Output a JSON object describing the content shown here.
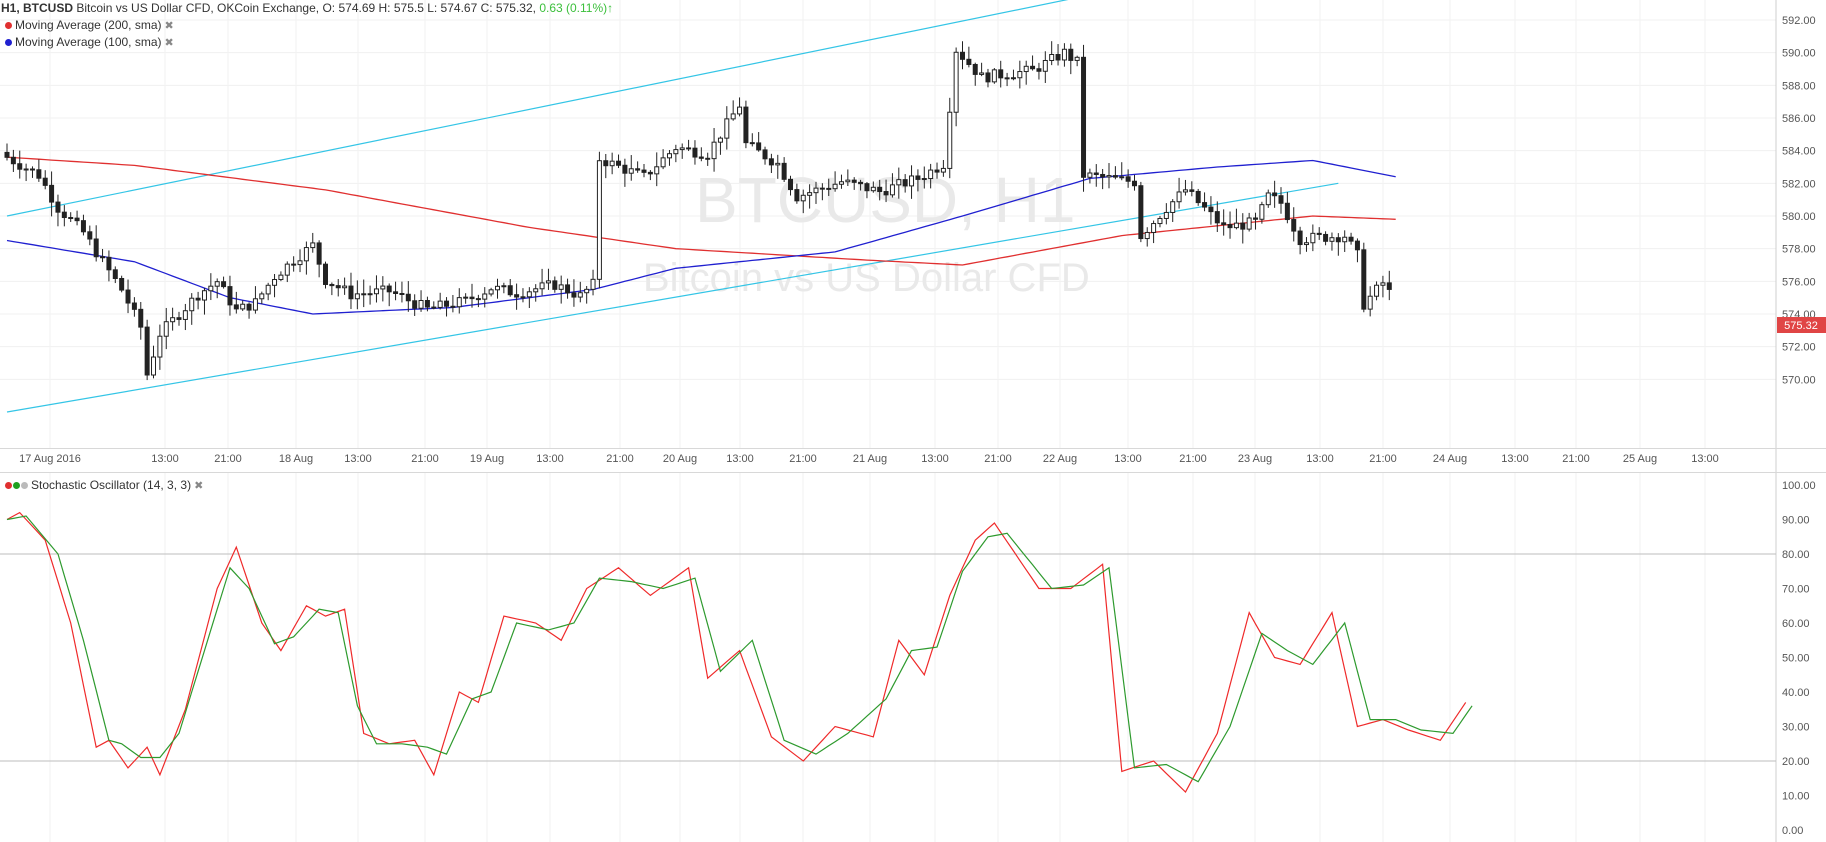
{
  "header": {
    "symbol": "H1, BTCUSD",
    "description": "Bitcoin vs US Dollar CFD, OKCoin Exchange,",
    "ohlc": "O: 574.69 H: 575.5 L: 574.67 C: 575.32,",
    "change": "0.63 (0.11%)"
  },
  "indicators": [
    {
      "label": "Moving Average (200, sma)",
      "color": "#e03030"
    },
    {
      "label": "Moving Average (100, sma)",
      "color": "#2020d0"
    }
  ],
  "oscillator": {
    "label": "Stochastic Oscillator (14, 3, 3)",
    "dots": [
      "#e03030",
      "#20a020",
      "#bbbbbb"
    ]
  },
  "watermark": {
    "symbol": "BTCUSD, H1",
    "description": "Bitcoin vs US Dollar CFD"
  },
  "last_price_label": "575.32",
  "colors": {
    "ma200": "#e03030",
    "ma100": "#2020d0",
    "channel": "#34c5e6",
    "k": "#ef2a2a",
    "d": "#2e9a2e",
    "last_price_bg": "#e04545"
  },
  "chart_data": [
    {
      "type": "candlestick",
      "title": "BTCUSD H1",
      "ylim": [
        568,
        592
      ],
      "yticks": [
        "592.00",
        "590.00",
        "588.00",
        "586.00",
        "584.00",
        "582.00",
        "580.00",
        "578.00",
        "576.00",
        "574.00",
        "572.00",
        "570.00"
      ],
      "xticks": [
        "17 Aug 2016",
        "13:00",
        "21:00",
        "18 Aug",
        "13:00",
        "21:00",
        "19 Aug",
        "13:00",
        "21:00",
        "20 Aug",
        "13:00",
        "21:00",
        "21 Aug",
        "13:00",
        "21:00",
        "22 Aug",
        "13:00",
        "21:00",
        "23 Aug",
        "13:00",
        "21:00",
        "24 Aug",
        "13:00",
        "21:00",
        "25 Aug",
        "13:00"
      ],
      "price_anchors": [
        [
          0,
          583.6
        ],
        [
          5,
          582.5
        ],
        [
          8,
          580.5
        ],
        [
          12,
          579
        ],
        [
          15,
          577.2
        ],
        [
          18,
          575.5
        ],
        [
          21,
          573.2
        ],
        [
          22,
          570.3
        ],
        [
          24,
          572.8
        ],
        [
          27,
          574
        ],
        [
          30,
          575.2
        ],
        [
          33,
          576
        ],
        [
          36,
          574.2
        ],
        [
          39,
          574.7
        ],
        [
          42,
          576.3
        ],
        [
          45,
          577.3
        ],
        [
          48,
          578.2
        ],
        [
          50,
          576.1
        ],
        [
          54,
          575.2
        ],
        [
          60,
          575.4
        ],
        [
          66,
          574.3
        ],
        [
          72,
          574.8
        ],
        [
          76,
          575.6
        ],
        [
          80,
          575.3
        ],
        [
          86,
          575.8
        ],
        [
          90,
          575.1
        ],
        [
          92,
          575.8
        ],
        [
          93,
          583.5
        ],
        [
          100,
          582.4
        ],
        [
          105,
          584.2
        ],
        [
          110,
          583.8
        ],
        [
          115,
          586.8
        ],
        [
          116,
          584.4
        ],
        [
          121,
          583.2
        ],
        [
          124,
          581.2
        ],
        [
          131,
          582.1
        ],
        [
          137,
          581.5
        ],
        [
          143,
          582.3
        ],
        [
          147,
          583.2
        ],
        [
          149,
          590.2
        ],
        [
          153,
          588.5
        ],
        [
          161,
          588.9
        ],
        [
          166,
          590.0
        ],
        [
          168,
          589.4
        ],
        [
          169,
          582.5
        ],
        [
          177,
          582.1
        ],
        [
          178,
          578.8
        ],
        [
          182,
          580.5
        ],
        [
          185,
          581.6
        ],
        [
          191,
          579.3
        ],
        [
          196,
          579.6
        ],
        [
          198,
          581.2
        ],
        [
          200,
          580.8
        ],
        [
          203,
          578.6
        ],
        [
          210,
          578.8
        ],
        [
          212,
          577.6
        ],
        [
          213,
          574.6
        ],
        [
          216,
          575.9
        ],
        [
          217,
          575.32
        ]
      ],
      "ma200": [
        [
          0,
          583.6
        ],
        [
          20,
          583.1
        ],
        [
          50,
          581.6
        ],
        [
          82,
          579.3
        ],
        [
          105,
          578.0
        ],
        [
          135,
          577.3
        ],
        [
          150,
          577.0
        ],
        [
          175,
          578.8
        ],
        [
          195,
          579.6
        ],
        [
          205,
          580.0
        ],
        [
          218,
          579.8
        ]
      ],
      "ma100": [
        [
          0,
          578.5
        ],
        [
          20,
          577.2
        ],
        [
          35,
          575.0
        ],
        [
          48,
          574.0
        ],
        [
          70,
          574.4
        ],
        [
          92,
          575.5
        ],
        [
          105,
          576.8
        ],
        [
          130,
          577.8
        ],
        [
          150,
          580.0
        ],
        [
          170,
          582.3
        ],
        [
          190,
          583.0
        ],
        [
          205,
          583.4
        ],
        [
          218,
          582.4
        ]
      ],
      "channel": [
        {
          "name": "upper",
          "points": [
            [
              0,
              580
            ],
            [
              196,
              595.6
            ]
          ]
        },
        {
          "name": "lower",
          "points": [
            [
              0,
              568
            ],
            [
              209,
              582
            ]
          ]
        }
      ]
    },
    {
      "type": "line",
      "title": "Stochastic Oscillator (14, 3, 3)",
      "ylim": [
        0,
        100
      ],
      "yticks": [
        "100.00",
        "90.00",
        "80.00",
        "70.00",
        "60.00",
        "50.00",
        "40.00",
        "30.00",
        "20.00",
        "10.00",
        "0.00"
      ],
      "levels": [
        80,
        20
      ],
      "series": [
        {
          "name": "%K",
          "points": [
            [
              0,
              90
            ],
            [
              2,
              92
            ],
            [
              6,
              84
            ],
            [
              10,
              60
            ],
            [
              14,
              24
            ],
            [
              16,
              26
            ],
            [
              19,
              18
            ],
            [
              22,
              24
            ],
            [
              24,
              16
            ],
            [
              28,
              35
            ],
            [
              33,
              70
            ],
            [
              36,
              82
            ],
            [
              40,
              60
            ],
            [
              43,
              52
            ],
            [
              47,
              65
            ],
            [
              50,
              62
            ],
            [
              53,
              64
            ],
            [
              56,
              28
            ],
            [
              60,
              25
            ],
            [
              64,
              26
            ],
            [
              67,
              16
            ],
            [
              71,
              40
            ],
            [
              74,
              37
            ],
            [
              78,
              62
            ],
            [
              83,
              60
            ],
            [
              87,
              55
            ],
            [
              91,
              70
            ],
            [
              96,
              76
            ],
            [
              101,
              68
            ],
            [
              107,
              76
            ],
            [
              110,
              44
            ],
            [
              115,
              52
            ],
            [
              120,
              27
            ],
            [
              125,
              20
            ],
            [
              130,
              30
            ],
            [
              136,
              27
            ],
            [
              140,
              55
            ],
            [
              144,
              45
            ],
            [
              148,
              68
            ],
            [
              152,
              84
            ],
            [
              155,
              89
            ],
            [
              162,
              70
            ],
            [
              167,
              70
            ],
            [
              172,
              77
            ],
            [
              175,
              17
            ],
            [
              180,
              20
            ],
            [
              185,
              11
            ],
            [
              190,
              28
            ],
            [
              195,
              63
            ],
            [
              199,
              50
            ],
            [
              203,
              48
            ],
            [
              208,
              63
            ],
            [
              212,
              30
            ],
            [
              216,
              32
            ],
            [
              220,
              29
            ],
            [
              225,
              26
            ],
            [
              229,
              37
            ]
          ]
        },
        {
          "name": "%D",
          "points": [
            [
              0,
              90
            ],
            [
              3,
              91
            ],
            [
              8,
              80
            ],
            [
              12,
              55
            ],
            [
              16,
              26
            ],
            [
              18,
              25
            ],
            [
              21,
              21
            ],
            [
              24,
              21
            ],
            [
              27,
              28
            ],
            [
              31,
              52
            ],
            [
              35,
              76
            ],
            [
              38,
              70
            ],
            [
              42,
              54
            ],
            [
              45,
              56
            ],
            [
              49,
              64
            ],
            [
              52,
              63
            ],
            [
              55,
              36
            ],
            [
              58,
              25
            ],
            [
              62,
              25
            ],
            [
              66,
              24
            ],
            [
              69,
              22
            ],
            [
              73,
              38
            ],
            [
              76,
              40
            ],
            [
              80,
              60
            ],
            [
              85,
              58
            ],
            [
              89,
              60
            ],
            [
              93,
              73
            ],
            [
              98,
              72
            ],
            [
              103,
              70
            ],
            [
              108,
              73
            ],
            [
              112,
              46
            ],
            [
              117,
              55
            ],
            [
              122,
              26
            ],
            [
              127,
              22
            ],
            [
              132,
              28
            ],
            [
              138,
              38
            ],
            [
              142,
              52
            ],
            [
              146,
              53
            ],
            [
              150,
              75
            ],
            [
              154,
              85
            ],
            [
              157,
              86
            ],
            [
              164,
              70
            ],
            [
              169,
              71
            ],
            [
              173,
              76
            ],
            [
              177,
              18
            ],
            [
              182,
              19
            ],
            [
              187,
              14
            ],
            [
              192,
              30
            ],
            [
              197,
              57
            ],
            [
              201,
              52
            ],
            [
              205,
              48
            ],
            [
              210,
              60
            ],
            [
              214,
              32
            ],
            [
              218,
              32
            ],
            [
              222,
              29
            ],
            [
              227,
              28
            ],
            [
              230,
              36
            ]
          ]
        }
      ]
    }
  ]
}
